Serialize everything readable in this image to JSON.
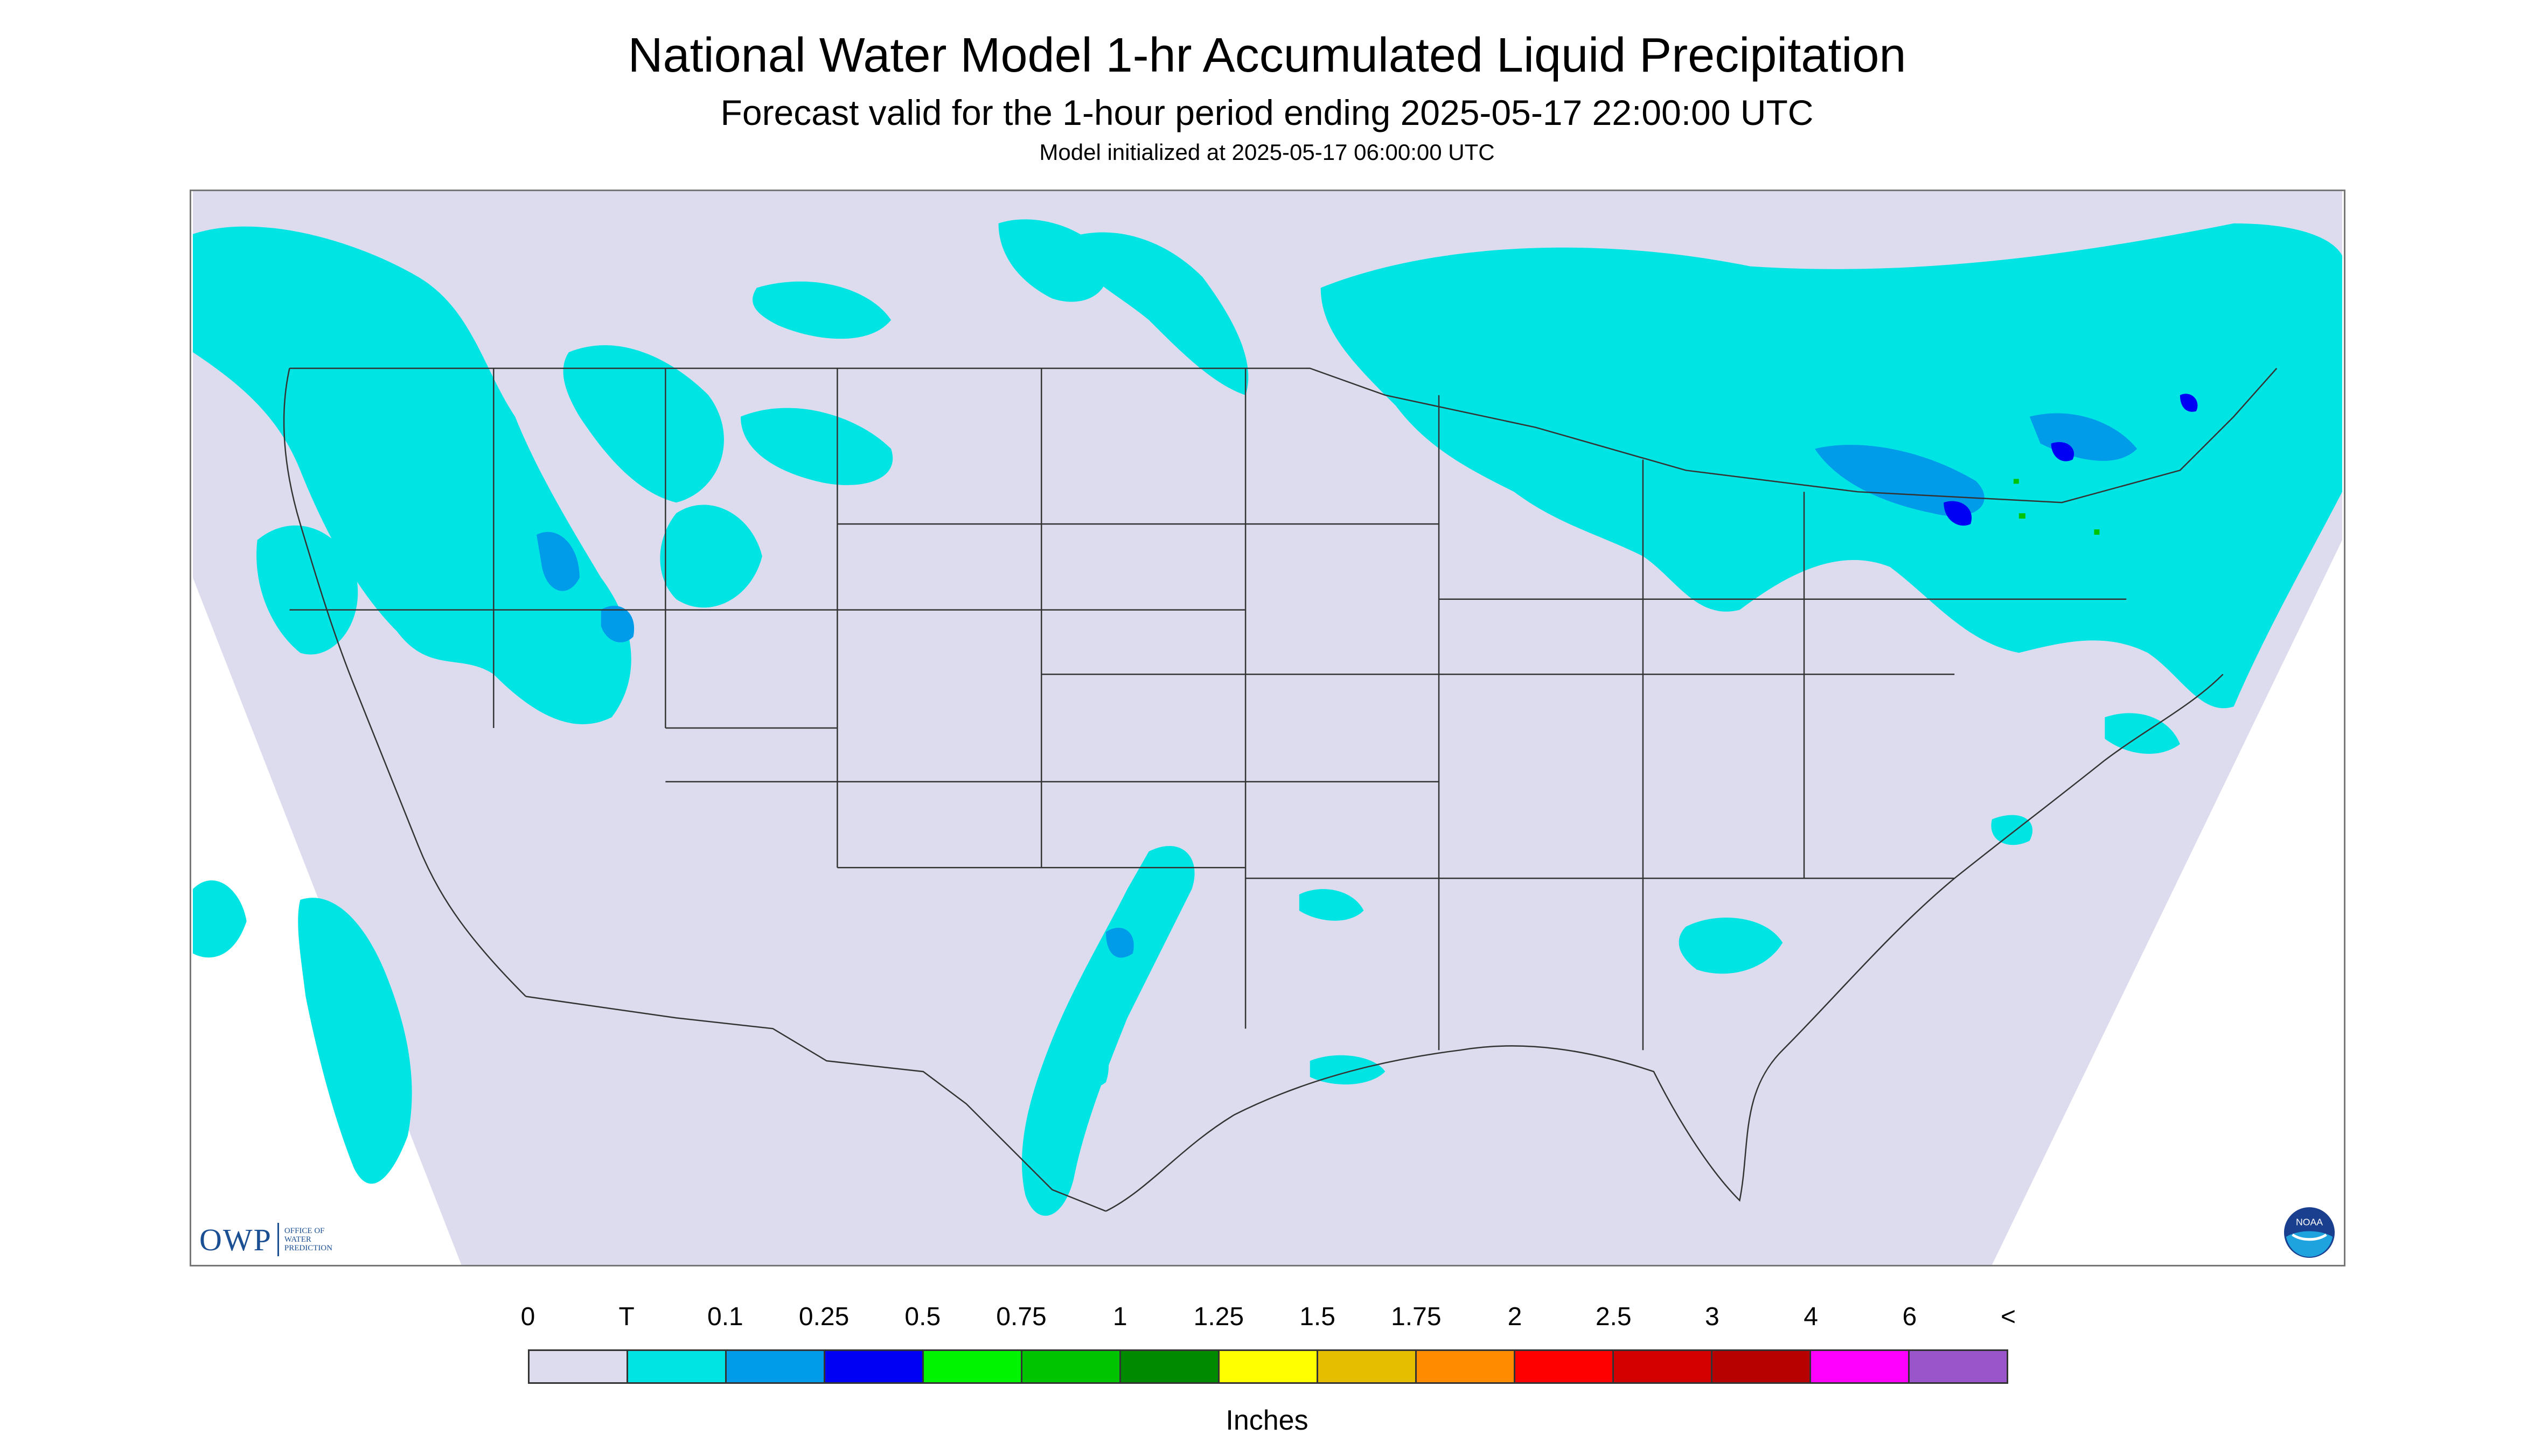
{
  "header": {
    "title": "National Water Model 1-hr Accumulated Liquid Precipitation",
    "subtitle": "Forecast valid for the 1-hour period ending 2025-05-17 22:00:00 UTC",
    "init_line": "Model initialized at 2025-05-17 06:00:00 UTC"
  },
  "map": {
    "background_color": "#dcdcee",
    "outside_color": "#ffffff",
    "boundary_color": "#333333",
    "region": "Continental United States"
  },
  "branding": {
    "owp_mark": "OWP",
    "owp_text_1": "OFFICE OF",
    "owp_text_2": "WATER",
    "owp_text_3": "PREDICTION",
    "noaa_icon": "noaa-logo-icon",
    "noaa_text": "NOAA"
  },
  "legend": {
    "tick_labels": [
      "0",
      "T",
      "0.1",
      "0.25",
      "0.5",
      "0.75",
      "1",
      "1.25",
      "1.5",
      "1.75",
      "2",
      "2.5",
      "3",
      "4",
      "6",
      "<"
    ],
    "colors": [
      "#dcdcee",
      "#00e4e4",
      "#009be9",
      "#0000f4",
      "#00f400",
      "#00c400",
      "#008a00",
      "#ffff00",
      "#e6be00",
      "#ff8c00",
      "#ff0000",
      "#d40000",
      "#b70000",
      "#ff00ff",
      "#9955c9"
    ],
    "units": "Inches"
  }
}
